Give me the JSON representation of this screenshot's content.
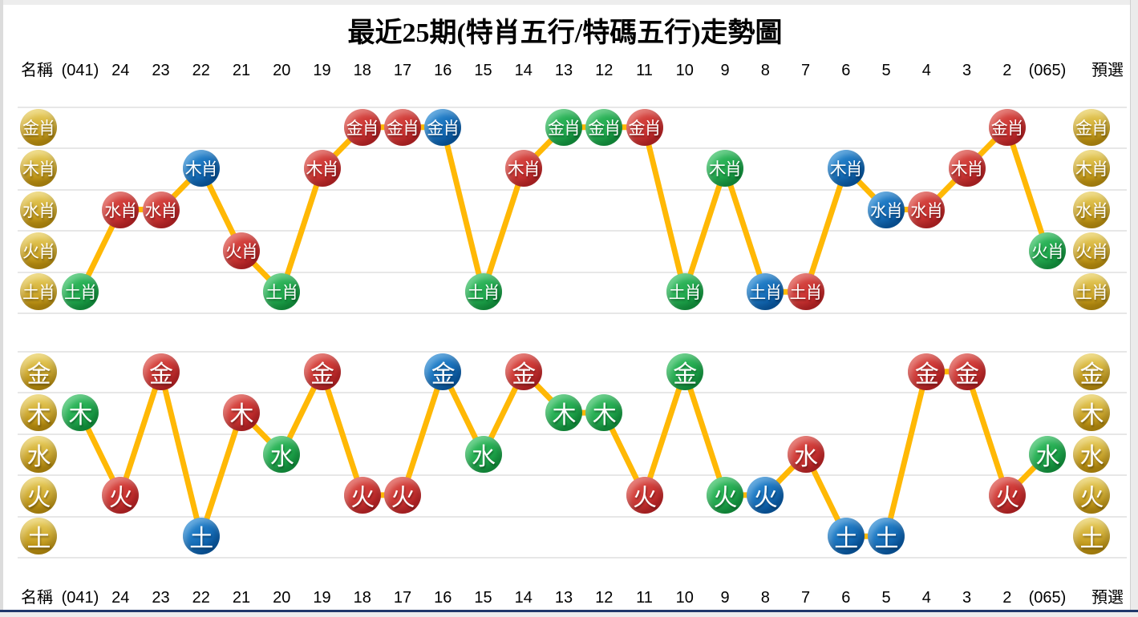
{
  "title": "最近25期(特肖五行/特碼五行)走勢圖",
  "axis_header": {
    "name_label": "名稱",
    "preselect_label": "預選",
    "columns": [
      "(041)",
      "24",
      "23",
      "22",
      "21",
      "20",
      "19",
      "18",
      "17",
      "16",
      "15",
      "14",
      "13",
      "12",
      "11",
      "10",
      "9",
      "8",
      "7",
      "6",
      "5",
      "4",
      "3",
      "2",
      "(065)"
    ]
  },
  "colors": {
    "line": "#ffb805",
    "grid": "#e7e7e7",
    "point_red": "#c93430",
    "point_green": "#1da94c",
    "point_blue": "#1370be",
    "axis_gold": "#cfa21b",
    "bottom_bar": "#20386b"
  },
  "chart_data": [
    {
      "type": "line",
      "name": "特肖五行",
      "x_categories": [
        "(041)",
        "24",
        "23",
        "22",
        "21",
        "20",
        "19",
        "18",
        "17",
        "16",
        "15",
        "14",
        "13",
        "12",
        "11",
        "10",
        "9",
        "8",
        "7",
        "6",
        "5",
        "4",
        "3",
        "2",
        "(065)"
      ],
      "y_categories_top_to_bottom": [
        "金肖",
        "木肖",
        "水肖",
        "火肖",
        "土肖"
      ],
      "values": [
        "土肖",
        "水肖",
        "水肖",
        "木肖",
        "火肖",
        "土肖",
        "木肖",
        "金肖",
        "金肖",
        "金肖",
        "土肖",
        "木肖",
        "金肖",
        "金肖",
        "金肖",
        "土肖",
        "木肖",
        "土肖",
        "土肖",
        "木肖",
        "水肖",
        "水肖",
        "木肖",
        "金肖",
        "火肖"
      ],
      "point_colors": [
        "green",
        "red",
        "red",
        "blue",
        "red",
        "green",
        "red",
        "red",
        "red",
        "blue",
        "green",
        "red",
        "green",
        "green",
        "red",
        "green",
        "green",
        "blue",
        "red",
        "blue",
        "blue",
        "red",
        "red",
        "red",
        "green"
      ],
      "legend_position": "none",
      "grid": "horizontal"
    },
    {
      "type": "line",
      "name": "特碼五行",
      "x_categories": [
        "(041)",
        "24",
        "23",
        "22",
        "21",
        "20",
        "19",
        "18",
        "17",
        "16",
        "15",
        "14",
        "13",
        "12",
        "11",
        "10",
        "9",
        "8",
        "7",
        "6",
        "5",
        "4",
        "3",
        "2",
        "(065)"
      ],
      "y_categories_top_to_bottom": [
        "金",
        "木",
        "水",
        "火",
        "土"
      ],
      "values": [
        "木",
        "火",
        "金",
        "土",
        "木",
        "水",
        "金",
        "火",
        "火",
        "金",
        "水",
        "金",
        "木",
        "木",
        "火",
        "金",
        "火",
        "火",
        "水",
        "土",
        "土",
        "金",
        "金",
        "火",
        "水"
      ],
      "point_colors": [
        "green",
        "red",
        "red",
        "blue",
        "red",
        "green",
        "red",
        "red",
        "red",
        "blue",
        "green",
        "red",
        "green",
        "green",
        "red",
        "green",
        "green",
        "blue",
        "red",
        "blue",
        "blue",
        "red",
        "red",
        "red",
        "green"
      ],
      "legend_position": "none",
      "grid": "horizontal"
    }
  ]
}
